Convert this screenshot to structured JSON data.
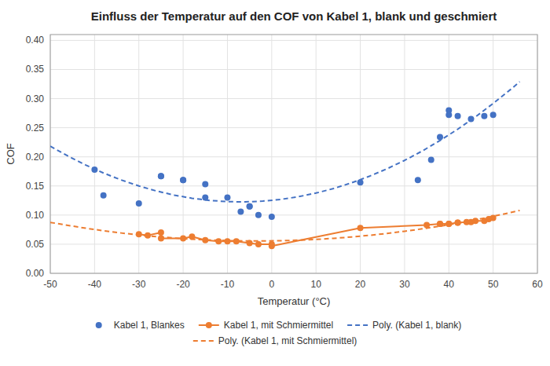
{
  "chart_data": {
    "type": "scatter",
    "title": "Einfluss der Temperatur auf den COF von Kabel 1, blank und geschmiert",
    "xlabel": "Temperatur (°C)",
    "ylabel": "COF",
    "xlim": [
      -50,
      60
    ],
    "ylim": [
      0.0,
      0.41
    ],
    "xticks": [
      -50,
      -40,
      -30,
      -20,
      -10,
      0,
      10,
      20,
      30,
      40,
      50,
      60
    ],
    "yticks": [
      {
        "value": 0,
        "label": "0.00"
      },
      0.05,
      {
        "value": 0.1,
        "label": "0.10"
      },
      0.15,
      {
        "value": 0.2,
        "label": "0.20"
      },
      0.25,
      {
        "value": 0.3,
        "label": "0.30"
      },
      0.35,
      {
        "value": 0.4,
        "label": "0.40"
      }
    ],
    "grid": true,
    "legend": "bottom",
    "series": [
      {
        "name": "Kabel 1, Blankes",
        "type": "scatter",
        "marker": "circle",
        "color": "#4472C4",
        "x": [
          -40,
          -38,
          -30,
          -25,
          -25,
          -20,
          -20,
          -15,
          -15,
          -10,
          -7,
          -5,
          -5,
          -3,
          0,
          20,
          33,
          36,
          38,
          40,
          40,
          42,
          45,
          48,
          50
        ],
        "values": [
          0.178,
          0.134,
          0.12,
          0.167,
          0.167,
          0.16,
          0.16,
          0.153,
          0.13,
          0.13,
          0.106,
          0.115,
          0.115,
          0.1,
          0.097,
          0.156,
          0.16,
          0.195,
          0.234,
          0.28,
          0.272,
          0.27,
          0.265,
          0.27,
          0.272
        ]
      },
      {
        "name": "Kabel 1, mit Schmiermittel",
        "type": "line",
        "marker": "circle",
        "line_style": "solid",
        "color": "#ED7D31",
        "x": [
          -30,
          -28,
          -25,
          -25,
          -20,
          -18,
          -15,
          -12,
          -10,
          -8,
          -5,
          -3,
          0,
          0,
          20,
          35,
          38,
          38,
          40,
          40,
          42,
          42,
          44,
          45,
          46,
          48,
          49,
          50
        ],
        "values": [
          0.067,
          0.065,
          0.07,
          0.06,
          0.06,
          0.063,
          0.057,
          0.055,
          0.055,
          0.055,
          0.052,
          0.05,
          0.05,
          0.047,
          0.078,
          0.083,
          0.085,
          0.085,
          0.085,
          0.085,
          0.087,
          0.087,
          0.088,
          0.088,
          0.09,
          0.09,
          0.093,
          0.095
        ]
      },
      {
        "name": "Poly. (Kabel 1, blank)",
        "type": "line",
        "line_style": "dashed",
        "color": "#4472C4",
        "x": [
          -50,
          -46,
          -42,
          -38,
          -34,
          -30,
          -26,
          -22,
          -18,
          -14,
          -10,
          -6,
          -2,
          2,
          6,
          10,
          14,
          18,
          22,
          26,
          30,
          34,
          38,
          42,
          46,
          50,
          54,
          56
        ],
        "values": [
          0.2183,
          0.2013,
          0.186,
          0.1723,
          0.1603,
          0.15,
          0.1413,
          0.1343,
          0.1289,
          0.1252,
          0.1231,
          0.1227,
          0.124,
          0.1269,
          0.1315,
          0.1378,
          0.1457,
          0.1553,
          0.1665,
          0.1794,
          0.1939,
          0.2101,
          0.228,
          0.2475,
          0.2687,
          0.2916,
          0.3161,
          0.329
        ]
      },
      {
        "name": "Poly. (Kabel 1, mit Schmiermittel)",
        "type": "line",
        "line_style": "dashed",
        "color": "#ED7D31",
        "x": [
          -50,
          -46,
          -42,
          -38,
          -34,
          -30,
          -26,
          -22,
          -18,
          -14,
          -10,
          -6,
          -2,
          2,
          6,
          10,
          14,
          18,
          22,
          26,
          30,
          34,
          38,
          42,
          46,
          50,
          54,
          56
        ],
        "values": [
          0.0875,
          0.0823,
          0.0775,
          0.0731,
          0.0693,
          0.0659,
          0.063,
          0.0606,
          0.0586,
          0.0572,
          0.0562,
          0.0556,
          0.0556,
          0.056,
          0.0569,
          0.0582,
          0.0601,
          0.0624,
          0.0652,
          0.0684,
          0.0722,
          0.0764,
          0.081,
          0.0862,
          0.0918,
          0.0979,
          0.1045,
          0.108
        ]
      }
    ]
  }
}
